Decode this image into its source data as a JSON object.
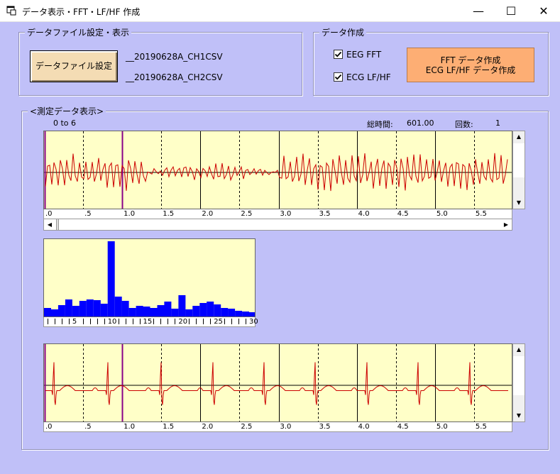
{
  "window": {
    "title": "データ表示・FFT・LF/HF 作成",
    "min_glyph": "—",
    "max_glyph": "☐",
    "close_glyph": "✕"
  },
  "file_group": {
    "label": "データファイル設定・表示",
    "button_label": "データファイル設定",
    "file1": "__20190628A_CH1CSV",
    "file2": "__20190628A_CH2CSV"
  },
  "create_group": {
    "label": "データ作成",
    "eeg_label": "EEG FFT",
    "eeg_checked": true,
    "ecg_label": "ECG LF/HF",
    "ecg_checked": true,
    "button_line1": "FFT データ作成",
    "button_line2": "ECG LF/HF データ作成"
  },
  "measure_group": {
    "label": "<測定データ表示>",
    "range_text": "0 to 6",
    "total_time_label": "総時間:",
    "total_time_value": "601.00",
    "count_label": "回数:",
    "count_value": "1"
  },
  "time_ticks": [
    ".0",
    ".5",
    "1.0",
    "1.5",
    "2.0",
    "2.5",
    "3.0",
    "3.5",
    "4.0",
    "4.5",
    "5.0",
    "5.5"
  ],
  "fft_ticks": [
    "5",
    "10",
    "15",
    "20",
    "25",
    "30"
  ],
  "fft_bars": [
    14,
    12,
    18,
    26,
    17,
    24,
    26,
    25,
    20,
    108,
    30,
    24,
    14,
    17,
    16,
    14,
    18,
    23,
    13,
    32,
    12,
    17,
    21,
    23,
    19,
    14,
    13,
    10,
    9,
    8
  ],
  "colors": {
    "background": "#c0c0f8",
    "plot_bg": "#ffffc8",
    "signal": "#cc0000",
    "bar": "#0000ff",
    "cursor": "#880088",
    "button_orange": "#fdae74"
  }
}
